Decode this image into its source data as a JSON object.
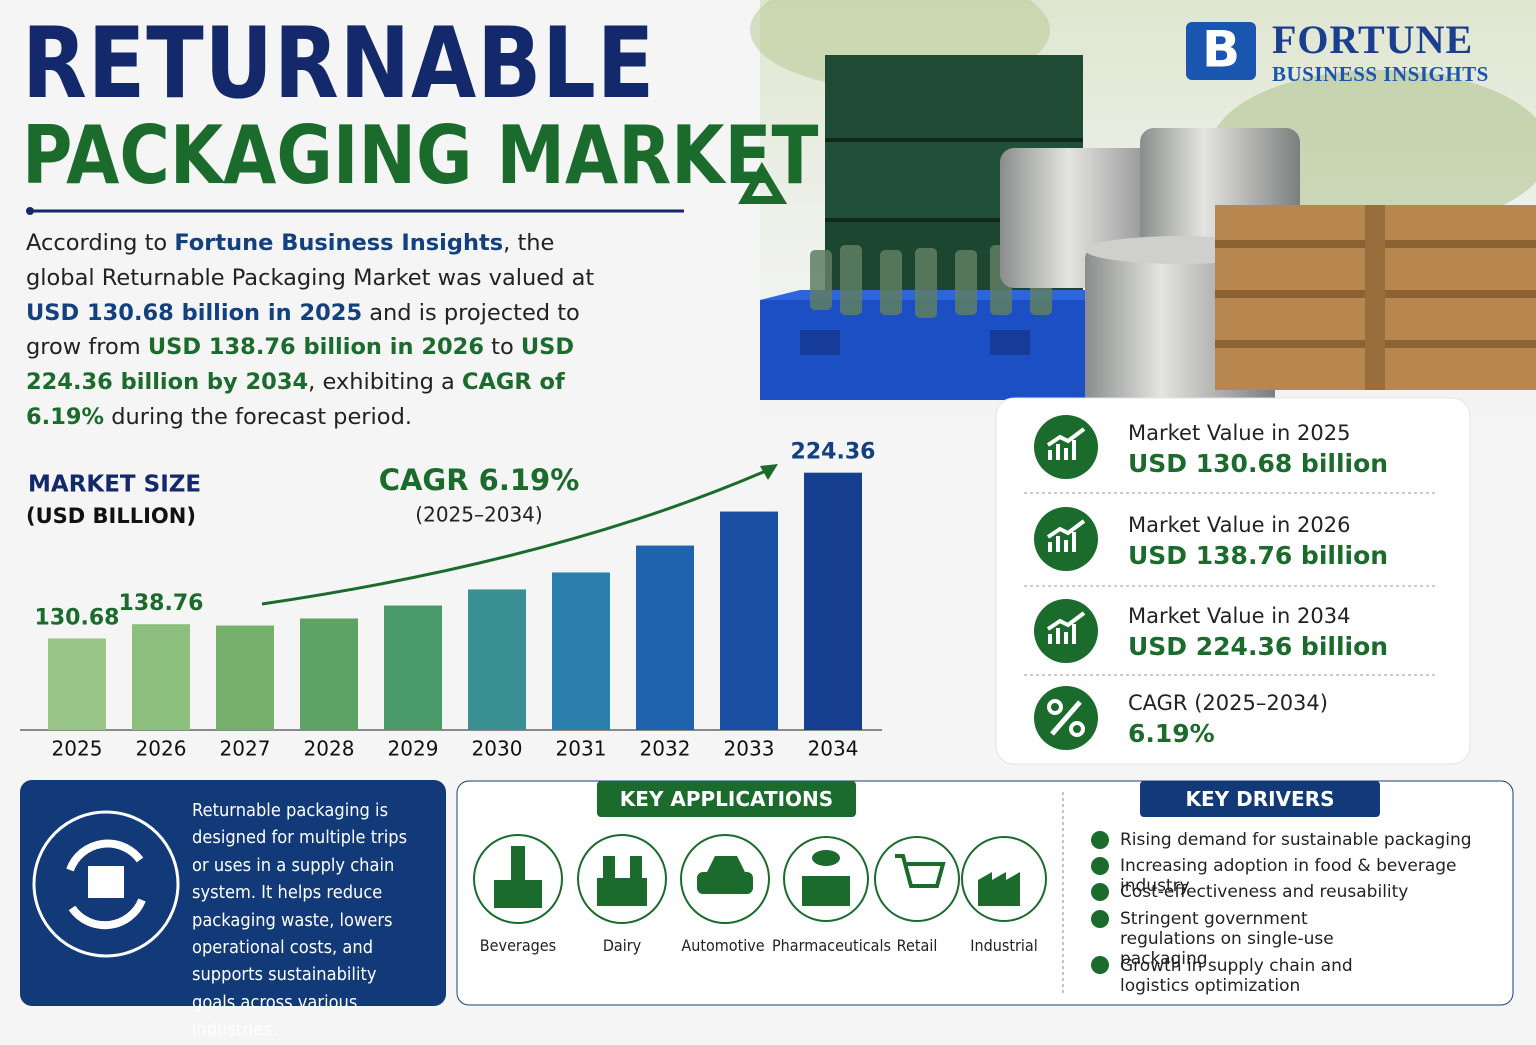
{
  "header": {
    "title_line1": "RETURNABLE",
    "title_line2": "PACKAGING MARKET"
  },
  "logo": {
    "name": "FORTUNE",
    "sub": "BUSINESS INSIGHTS"
  },
  "intro": [
    "According to ",
    "Fortune Business Insights",
    ", the global Returnable Packaging Market was valued at ",
    "USD 130.68 billion in 2025",
    " and is projected to grow from ",
    "USD 138.76 billion in 2026",
    " to ",
    "USD 224.36 billion by 2034",
    ", exhibiting a ",
    "CAGR of 6.19%",
    " during the forecast period."
  ],
  "chart_data": {
    "type": "bar",
    "title": "MARKET SIZE",
    "subtitle": "(USD BILLION)",
    "annotation": "CAGR 6.19%",
    "annotation_sub": "(2025–2034)",
    "categories": [
      "2025",
      "2026",
      "2027",
      "2028",
      "2029",
      "2030",
      "2031",
      "2032",
      "2033",
      "2034"
    ],
    "values": [
      130.68,
      138.76,
      138,
      142,
      149.3,
      158.4,
      168,
      183.2,
      202.4,
      224.36
    ],
    "value_labels": [
      "130.68",
      "138.76",
      null,
      null,
      null,
      null,
      null,
      null,
      null,
      "224.36"
    ],
    "colors": [
      "#98c488",
      "#8cbf7e",
      "#76b06c",
      "#5ea365",
      "#4a9a6a",
      "#3a8f92",
      "#2a7fad",
      "#1f62ad",
      "#1a4fa3",
      "#16408f"
    ],
    "ylim": [
      79,
      240
    ]
  },
  "stats": [
    {
      "label": "Market Value in 2025",
      "value": "USD 130.68 billion"
    },
    {
      "label": "Market Value in 2026",
      "value": "USD 138.76 billion"
    },
    {
      "label": "Market Value in 2034",
      "value": "USD 224.36 billion"
    },
    {
      "label": "CAGR (2025–2034)",
      "value": "6.19%"
    }
  ],
  "about": "Returnable packaging is designed for multiple trips or uses in a supply chain system. It helps reduce packaging waste, lowers operational costs, and supports sustainability goals across various industries.",
  "applications": {
    "title": "KEY APPLICATIONS",
    "items": [
      "Beverages",
      "Dairy",
      "Automotive",
      "Pharmaceuticals",
      "Retail",
      "Industrial"
    ]
  },
  "drivers": {
    "title": "KEY DRIVERS",
    "items": [
      "Rising demand for sustainable packaging",
      "Increasing adoption in food & beverage industry",
      "Cost-effectiveness and reusability",
      "Stringent government regulations on single-use packaging",
      "Growth in supply chain and logistics optimization"
    ]
  }
}
